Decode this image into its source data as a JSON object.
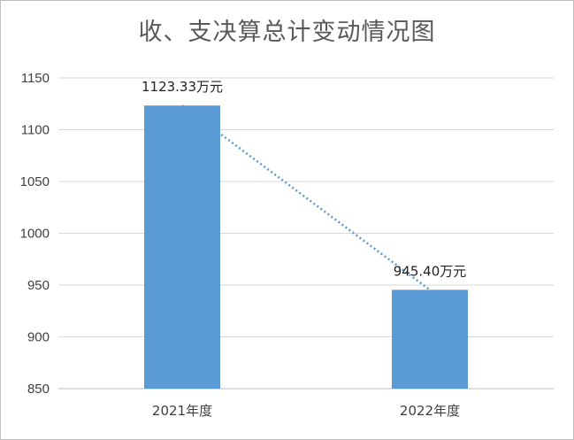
{
  "chart_data": {
    "type": "bar",
    "title": "收、支决算总计变动情况图",
    "categories": [
      "2021年度",
      "2022年度"
    ],
    "values": [
      1123.33,
      945.4
    ],
    "data_labels": [
      "1123.33万元",
      "945.40万元"
    ],
    "ylim": [
      850,
      1150
    ],
    "yticks": [
      850,
      900,
      950,
      1000,
      1050,
      1100,
      1150
    ],
    "xlabel": "",
    "ylabel": "",
    "grid": true,
    "legend": "none",
    "trendline": "dotted linear",
    "colors": {
      "bar": "#5b9bd5",
      "trend": "#5b9bd5",
      "grid": "#d9d9d9",
      "axis": "#bfbfbf"
    }
  }
}
